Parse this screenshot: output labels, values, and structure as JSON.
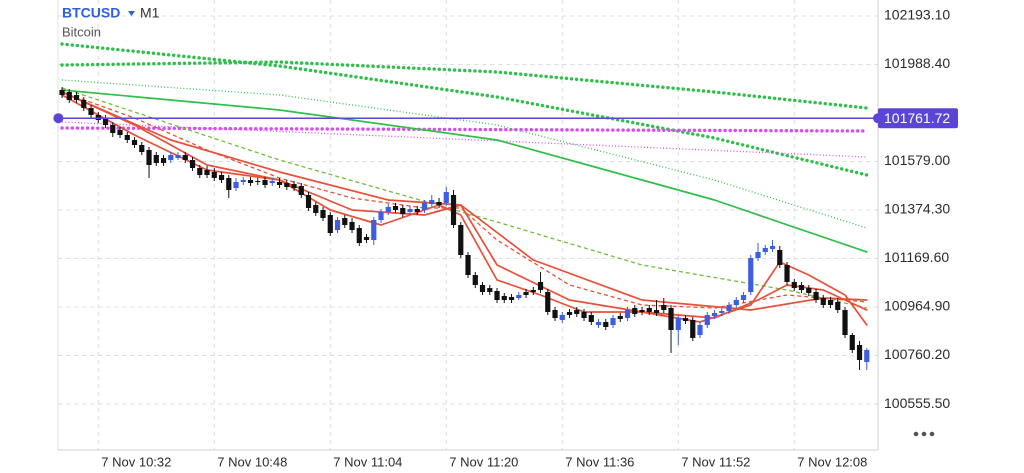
{
  "chart_data": {
    "type": "candlestick",
    "symbol": "BTCUSD",
    "timeframe": "M1",
    "subtitle": "Bitcoin",
    "up_color": "#3d5ee0",
    "down_color": "#111111",
    "grid": true,
    "ylim": [
      100361.6,
      102260.6
    ],
    "yticks": [
      {
        "value": 102193.1,
        "label": "102193.10"
      },
      {
        "value": 101988.4,
        "label": "101988.40"
      },
      {
        "value": 101579.0,
        "label": "101579.00"
      },
      {
        "value": 101374.3,
        "label": "101374.30"
      },
      {
        "value": 101169.6,
        "label": "101169.60"
      },
      {
        "value": 100964.9,
        "label": "100964.90"
      },
      {
        "value": 100760.2,
        "label": "100760.20"
      },
      {
        "value": 100555.5,
        "label": "100555.50"
      }
    ],
    "price_line": {
      "value": 101761.72,
      "label": "101761.72",
      "color": "#5b45d6"
    },
    "categories": [
      null,
      null,
      null,
      null,
      null,
      "7 Nov 10:32",
      null,
      null,
      null,
      null,
      null,
      null,
      null,
      null,
      null,
      null,
      null,
      null,
      null,
      null,
      null,
      "7 Nov 10:48",
      null,
      null,
      null,
      null,
      null,
      null,
      null,
      null,
      null,
      null,
      null,
      null,
      null,
      null,
      null,
      "7 Nov 11:04",
      null,
      null,
      null,
      null,
      null,
      null,
      null,
      null,
      null,
      null,
      null,
      null,
      null,
      null,
      null,
      "7 Nov 11:20",
      null,
      null,
      null,
      null,
      null,
      null,
      null,
      null,
      null,
      null,
      null,
      null,
      null,
      null,
      null,
      "7 Nov 11:36",
      null,
      null,
      null,
      null,
      null,
      null,
      null,
      null,
      null,
      null,
      null,
      null,
      null,
      null,
      null,
      "7 Nov 11:52",
      null,
      null,
      null,
      null,
      null,
      null,
      null,
      null,
      null,
      null,
      null,
      null,
      null,
      null,
      null,
      "7 Nov 12:08",
      null,
      null,
      null,
      null,
      null,
      null,
      null,
      null,
      null,
      null
    ],
    "open": [
      101880.8,
      101872.4,
      101859.7,
      101838.6,
      101804.8,
      101775.3,
      101762.6,
      101733.1,
      101712.0,
      101690.9,
      101669.8,
      101648.7,
      101627.6,
      101606.5,
      101593.8,
      101585.4,
      101593.8,
      101606.5,
      101585.4,
      101551.6,
      101543.2,
      101534.8,
      101522.1,
      101509.4,
      101467.2,
      101492.6,
      101501.0,
      101496.8,
      101501.0,
      101488.3,
      101492.6,
      101488.3,
      101484.1,
      101475.7,
      101437.7,
      101395.5,
      101374.4,
      101353.3,
      101290.0,
      101340.6,
      101323.8,
      101298.4,
      101260.5,
      101247.8,
      101332.2,
      101366.0,
      101391.3,
      101382.8,
      101366.0,
      101378.6,
      101374.4,
      101399.7,
      101408.2,
      101403.9,
      101437.7,
      101311.1,
      101184.5,
      101100.1,
      101057.9,
      101045.2,
      101032.6,
      101011.5,
      101007.3,
      101003.0,
      101028.4,
      101036.8,
      101070.6,
      101028.4,
      100952.4,
      100910.2,
      100944.0,
      100952.4,
      100944.0,
      100931.3,
      100889.1,
      100901.8,
      100889.1,
      100927.1,
      100918.6,
      100960.8,
      100952.4,
      100960.8,
      100952.4,
      100973.5,
      100960.8,
      100868.0,
      100918.6,
      100910.2,
      100846.9,
      100889.1,
      100927.1,
      100939.7,
      100948.2,
      100973.5,
      100994.6,
      101028.4,
      101171.8,
      101197.2,
      101209.8,
      101205.6,
      101142.3,
      101070.6,
      101057.9,
      101045.2,
      101028.4,
      101003.0,
      100994.6,
      100986.2,
      100952.4,
      100846.9,
      100804.7,
      100733.0
    ],
    "high": [
      101893.5,
      101885.0,
      101872.4,
      101851.3,
      101817.5,
      101788.0,
      101775.3,
      101745.8,
      101724.7,
      101703.6,
      101682.5,
      101661.4,
      101640.3,
      101619.2,
      101606.5,
      101619.2,
      101619.2,
      101619.2,
      101598.1,
      101564.3,
      101560.1,
      101551.6,
      101534.8,
      101522.1,
      101509.4,
      101513.7,
      101513.7,
      101509.4,
      101513.7,
      101509.4,
      101509.4,
      101501.0,
      101496.8,
      101488.3,
      101450.4,
      101408.2,
      101387.1,
      101366.0,
      101344.9,
      101353.3,
      101340.6,
      101311.1,
      101273.1,
      101344.9,
      101378.6,
      101399.7,
      101403.9,
      101395.5,
      101391.3,
      101391.3,
      101416.6,
      101437.7,
      101425.0,
      101471.5,
      101458.8,
      101323.8,
      101197.2,
      101112.8,
      101070.6,
      101057.9,
      101045.2,
      101024.1,
      101019.9,
      101028.4,
      101041.0,
      101049.5,
      101112.8,
      101041.0,
      100965.1,
      100944.0,
      100956.6,
      100965.1,
      100956.6,
      100944.0,
      100914.4,
      100914.4,
      100931.3,
      100939.7,
      100965.1,
      100973.5,
      100965.1,
      100973.5,
      100994.6,
      101003.0,
      100973.5,
      100931.3,
      100931.3,
      100922.9,
      100901.8,
      100944.0,
      100952.4,
      100960.8,
      100986.2,
      101007.3,
      101028.4,
      101184.5,
      101235.1,
      101226.7,
      101247.8,
      101222.5,
      101154.9,
      101083.2,
      101070.6,
      101057.9,
      101041.0,
      101015.7,
      101007.3,
      101003.0,
      100965.1,
      100855.3,
      100821.6,
      100792.0
    ],
    "low": [
      101847.0,
      101826.0,
      101826.0,
      101792.2,
      101762.6,
      101741.5,
      101720.4,
      101682.5,
      101678.2,
      101657.1,
      101636.0,
      101606.5,
      101509.4,
      101560.1,
      101560.1,
      101572.7,
      101585.4,
      101572.7,
      101539.0,
      101509.4,
      101509.4,
      101496.8,
      101488.3,
      101425.0,
      101454.6,
      101479.9,
      101475.7,
      101479.9,
      101467.2,
      101475.7,
      101467.2,
      101458.8,
      101454.6,
      101425.0,
      101370.2,
      101349.1,
      101328.0,
      101264.7,
      101277.3,
      101298.4,
      101277.3,
      101222.5,
      101235.1,
      101226.7,
      101319.5,
      101353.3,
      101361.7,
      101344.9,
      101353.3,
      101353.3,
      101361.7,
      101387.1,
      101382.8,
      101391.3,
      101298.4,
      101171.8,
      101087.4,
      101045.2,
      101015.7,
      101015.7,
      100981.9,
      100981.9,
      100981.9,
      100994.6,
      101003.0,
      101015.7,
      101024.1,
      100931.3,
      100906.0,
      100897.5,
      100918.6,
      100922.9,
      100906.0,
      100889.1,
      100876.4,
      100868.0,
      100876.4,
      100901.8,
      100906.0,
      100922.9,
      100931.3,
      100931.3,
      100927.1,
      100939.7,
      100771.0,
      100804.7,
      100893.3,
      100821.6,
      100834.2,
      100876.4,
      100914.4,
      100927.1,
      100935.5,
      100960.8,
      100981.9,
      101015.7,
      101159.2,
      101184.5,
      101197.2,
      101129.6,
      101057.9,
      101032.6,
      101024.1,
      101011.5,
      100981.9,
      100960.8,
      100960.8,
      100939.7,
      100834.2,
      100771.0,
      100699.2,
      100699.2
    ],
    "close": [
      101859.7,
      101838.6,
      101838.6,
      101804.8,
      101775.3,
      101754.2,
      101733.1,
      101699.3,
      101690.9,
      101669.8,
      101648.7,
      101619.2,
      101564.3,
      101572.7,
      101572.7,
      101606.5,
      101606.5,
      101585.4,
      101551.6,
      101522.1,
      101522.1,
      101509.4,
      101501.0,
      101458.8,
      101492.6,
      101501.0,
      101488.3,
      101492.6,
      101479.9,
      101496.8,
      101479.9,
      101471.5,
      101467.2,
      101437.7,
      101382.8,
      101361.7,
      101340.6,
      101277.3,
      101332.2,
      101311.1,
      101290.0,
      101235.1,
      101247.8,
      101332.2,
      101366.0,
      101387.1,
      101374.4,
      101357.5,
      101378.6,
      101366.0,
      101403.9,
      101416.6,
      101395.5,
      101450.4,
      101311.1,
      101184.5,
      101100.1,
      101057.9,
      101028.4,
      101028.4,
      100994.6,
      100994.6,
      100994.6,
      101015.7,
      101015.7,
      101028.4,
      101036.8,
      100944.0,
      100918.6,
      100931.3,
      100931.3,
      100935.5,
      100918.6,
      100901.8,
      100901.8,
      100880.7,
      100918.6,
      100914.4,
      100952.4,
      100935.5,
      100944.0,
      100944.0,
      100939.7,
      100952.4,
      100868.0,
      100918.6,
      100906.0,
      100834.2,
      100889.1,
      100931.3,
      100939.7,
      100948.2,
      100973.5,
      100994.6,
      101015.7,
      101171.8,
      101197.2,
      101214.0,
      101222.5,
      101142.3,
      101070.6,
      101045.2,
      101036.8,
      101024.1,
      100994.6,
      100973.5,
      100973.5,
      100952.4,
      100846.9,
      100783.6,
      100741.4,
      100783.6
    ],
    "indicators": [
      {
        "color": "#2fbf4a",
        "style": "dotted-thick",
        "x": [
          0,
          30,
          60,
          90,
          111
        ],
        "values": [
          102074.9,
          101982.1,
          101851.3,
          101678.2,
          101522.1
        ]
      },
      {
        "color": "#2fbf4a",
        "style": "dotted-thick",
        "x": [
          0,
          30,
          60,
          90,
          111
        ],
        "values": [
          101986.3,
          101999.0,
          101956.8,
          101872.4,
          101804.8
        ]
      },
      {
        "color": "#d94cf0",
        "style": "dotted-thick",
        "x": [
          0,
          111
        ],
        "values": [
          101720.4,
          101707.8
        ]
      },
      {
        "color": "#d94cf0",
        "style": "dotted",
        "x": [
          0,
          111
        ],
        "values": [
          101745.8,
          101598.1
        ]
      },
      {
        "color": "#2fbf4a",
        "style": "dotted",
        "x": [
          0,
          30,
          60,
          90,
          111
        ],
        "values": [
          101923.0,
          101859.7,
          101733.1,
          101501.0,
          101298.4
        ]
      },
      {
        "color": "#2fbf4a",
        "style": "solid",
        "x": [
          0,
          30,
          60,
          75,
          90,
          111
        ],
        "values": [
          101880.8,
          101796.4,
          101669.8,
          101543.2,
          101416.6,
          101197.2
        ]
      },
      {
        "color": "#6cbf3a",
        "style": "dashed",
        "x": [
          0,
          30,
          60,
          80,
          100,
          111
        ],
        "values": [
          101889.2,
          101585.4,
          101323.8,
          101142.3,
          101036.8,
          100960.8
        ]
      },
      {
        "color": "#e8503a",
        "style": "solid",
        "x": [
          0,
          10,
          20,
          30,
          37,
          44,
          52,
          55,
          60,
          66,
          72,
          80,
          88,
          95,
          99,
          103,
          108,
          111
        ],
        "values": [
          101859.7,
          101690.9,
          101543.2,
          101501.0,
          101374.4,
          101311.1,
          101395.5,
          101353.3,
          101079.0,
          101015.7,
          100944.0,
          100944.0,
          100901.8,
          100973.5,
          101154.9,
          101100.1,
          101015.7,
          100889.1
        ]
      },
      {
        "color": "#e8503a",
        "style": "solid",
        "x": [
          0,
          10,
          20,
          30,
          40,
          50,
          55,
          60,
          70,
          80,
          90,
          96,
          100,
          105,
          111
        ],
        "values": [
          101872.4,
          101733.1,
          101564.3,
          101501.0,
          101374.4,
          101353.3,
          101395.5,
          101142.3,
          100994.6,
          100944.0,
          100918.6,
          100994.6,
          101057.9,
          101036.8,
          100952.4
        ]
      },
      {
        "color": "#e8503a",
        "style": "dashed",
        "x": [
          0,
          10,
          20,
          30,
          40,
          50,
          55,
          60,
          70,
          80,
          90,
          100,
          111
        ],
        "values": [
          101872.4,
          101762.6,
          101627.6,
          101509.4,
          101425.0,
          101382.8,
          101382.8,
          101247.8,
          101057.9,
          100973.5,
          100960.8,
          101015.7,
          100986.2
        ]
      },
      {
        "color": "#e8503a",
        "style": "solid",
        "x": [
          0,
          15,
          30,
          45,
          55,
          65,
          80,
          95,
          105,
          111
        ],
        "values": [
          101872.4,
          101669.8,
          101534.8,
          101416.6,
          101395.5,
          101163.4,
          100994.6,
          100952.4,
          101003.0,
          100994.6
        ]
      }
    ]
  }
}
